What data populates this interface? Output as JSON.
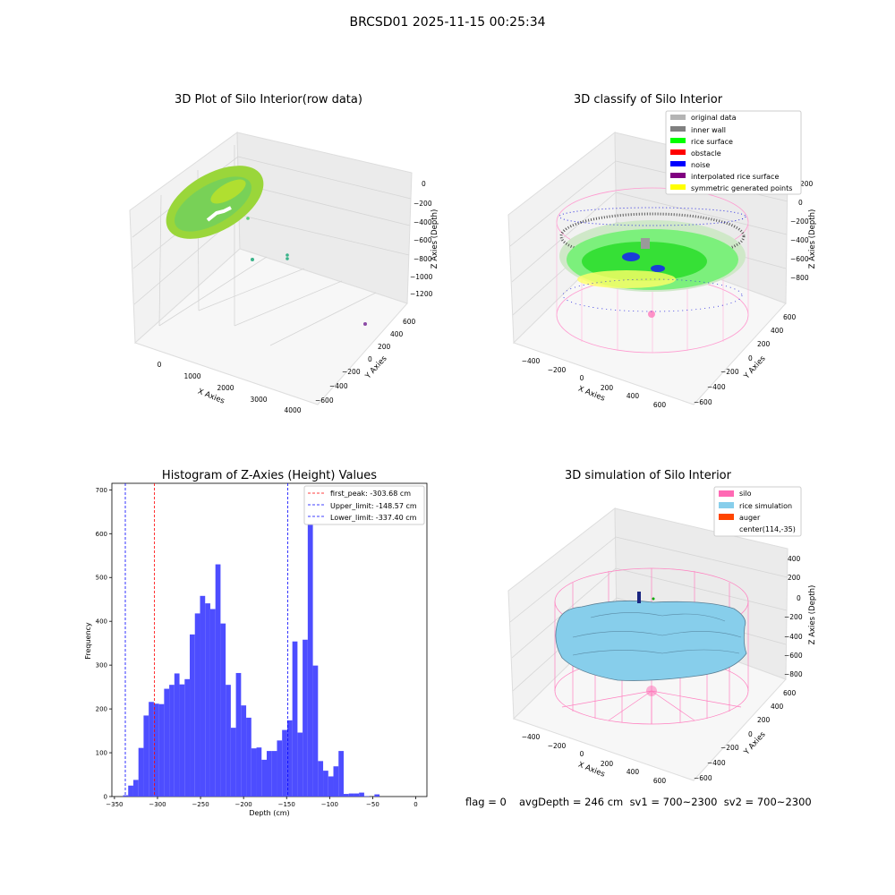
{
  "suptitle": "BRCSD01 2025-11-15 00:25:34",
  "panels": {
    "raw": {
      "title": "3D Plot of Silo Interior(row data)",
      "xlabel": "X Axies",
      "ylabel": "Y Axies",
      "zlabel": "Z Axies (Depth)",
      "xticks": [
        "0",
        "1000",
        "2000",
        "3000",
        "4000"
      ],
      "yticks": [
        "600",
        "400",
        "200",
        "0",
        "−200",
        "−400",
        "−600"
      ],
      "zticks": [
        "0",
        "−200",
        "−400",
        "−600",
        "−800",
        "−1000",
        "−1200"
      ]
    },
    "classify": {
      "title": "3D classify of Silo Interior",
      "xlabel": "X Axies",
      "ylabel": "Y Axies",
      "zlabel": "Z Axies (Depth)",
      "xticks": [
        "−400",
        "−200",
        "0",
        "200",
        "400",
        "600"
      ],
      "yticks": [
        "600",
        "400",
        "200",
        "0",
        "−200",
        "−400",
        "−600"
      ],
      "zticks": [
        "200",
        "0",
        "−200",
        "−400",
        "−600",
        "−800"
      ],
      "legend": [
        {
          "label": "original data",
          "color": "#b4b4b4"
        },
        {
          "label": "inner wall",
          "color": "#808080"
        },
        {
          "label": "rice surface",
          "color": "#00ff00"
        },
        {
          "label": "obstacle",
          "color": "#ff0000"
        },
        {
          "label": "noise",
          "color": "#0000ff"
        },
        {
          "label": "interpolated rice surface",
          "color": "#800080"
        },
        {
          "label": "symmetric generated points",
          "color": "#ffff00"
        }
      ]
    },
    "simulation": {
      "title": "3D simulation of Silo Interior",
      "xlabel": "X Axies",
      "ylabel": "Y Axies",
      "zlabel": "Z Axies (Depth)",
      "xticks": [
        "−400",
        "−200",
        "0",
        "200",
        "400",
        "600"
      ],
      "yticks": [
        "600",
        "400",
        "200",
        "0",
        "−200",
        "−400",
        "−600"
      ],
      "zticks": [
        "400",
        "200",
        "0",
        "−200",
        "−400",
        "−600",
        "−800"
      ],
      "legend": [
        {
          "label": "silo",
          "color": "#ff69b4"
        },
        {
          "label": "rice simulation",
          "color": "#87ceeb"
        },
        {
          "label": "auger",
          "color": "#ff4500"
        },
        {
          "label": "center(114,-35)",
          "color": ""
        }
      ]
    }
  },
  "chart_data": {
    "type": "bar",
    "title": "Histogram of Z-Axies (Height) Values",
    "xlabel": "Depth (cm)",
    "ylabel": "Frequency",
    "xlim": [
      -353,
      13
    ],
    "ylim": [
      0,
      715
    ],
    "xticks": [
      -350,
      -300,
      -250,
      -200,
      -150,
      -100,
      -50,
      0
    ],
    "yticks": [
      0,
      100,
      200,
      300,
      400,
      500,
      600,
      700
    ],
    "bar_color": "#4d4dff",
    "bins_start": -340,
    "bin_width": 5.96,
    "values": [
      3,
      25,
      38,
      111,
      185,
      216,
      212,
      211,
      246,
      255,
      281,
      256,
      268,
      370,
      418,
      458,
      441,
      428,
      530,
      395,
      255,
      157,
      282,
      208,
      180,
      110,
      112,
      84,
      104,
      104,
      128,
      152,
      174,
      354,
      146,
      358,
      695,
      299,
      81,
      59,
      46,
      69,
      104,
      6,
      7,
      7,
      9,
      1,
      0,
      5,
      0
    ],
    "vlines": [
      {
        "label": "first_peak: -303.68 cm",
        "x": -303.68,
        "color": "#ff0000"
      },
      {
        "label": "Upper_limit: -148.57 cm",
        "x": -148.57,
        "color": "#0000ff"
      },
      {
        "label": "Lower_limit: -337.40 cm",
        "x": -337.4,
        "color": "#0000ff"
      }
    ]
  },
  "footer": {
    "flag": "flag = 0",
    "stats": "avgDepth = 246 cm  sv1 = 700~2300  sv2 = 700~2300"
  }
}
